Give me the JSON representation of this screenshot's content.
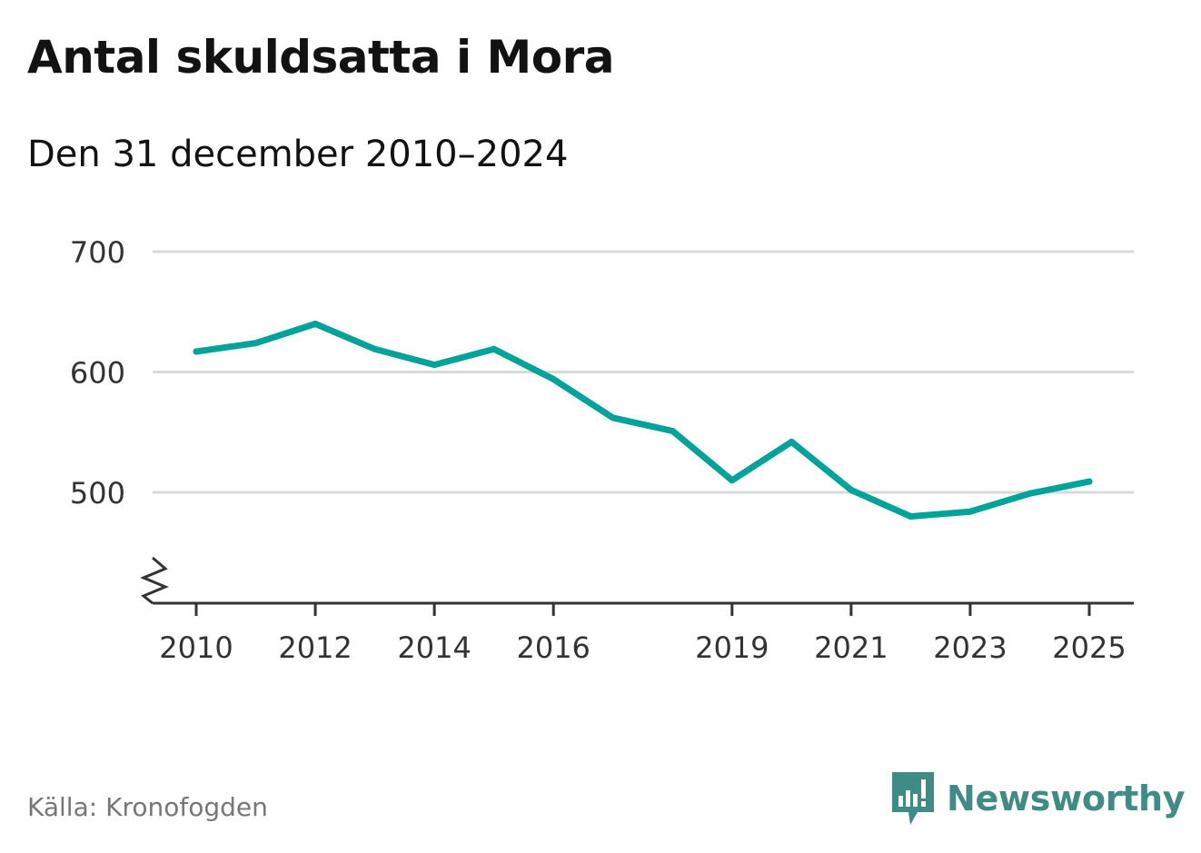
{
  "header": {
    "title": "Antal skuldsatta i Mora",
    "subtitle": "Den 31 december 2010–2024"
  },
  "footer": {
    "source": "Källa: Kronofogden",
    "brand": "Newsworthy"
  },
  "colors": {
    "line": "#00a39a",
    "grid": "#d9d9d9",
    "axis": "#333333",
    "brand": "#3f8c87"
  },
  "chart_data": {
    "type": "line",
    "title": "Antal skuldsatta i Mora",
    "subtitle": "Den 31 december 2010–2024",
    "xlabel": "",
    "ylabel": "",
    "x": [
      2010,
      2011,
      2012,
      2013,
      2014,
      2015,
      2016,
      2017,
      2018,
      2019,
      2020,
      2021,
      2022,
      2023,
      2024,
      2025
    ],
    "series": [
      {
        "name": "Antal skuldsatta",
        "values": [
          617,
          624,
          640,
          619,
          606,
          619,
          594,
          562,
          551,
          510,
          542,
          502,
          480,
          484,
          499,
          509
        ]
      }
    ],
    "xticks": [
      2010,
      2012,
      2014,
      2016,
      2019,
      2021,
      2023,
      2025
    ],
    "yticks": [
      500,
      600,
      700
    ],
    "ylim": [
      410,
      700
    ],
    "axis_break": true,
    "grid": true
  }
}
